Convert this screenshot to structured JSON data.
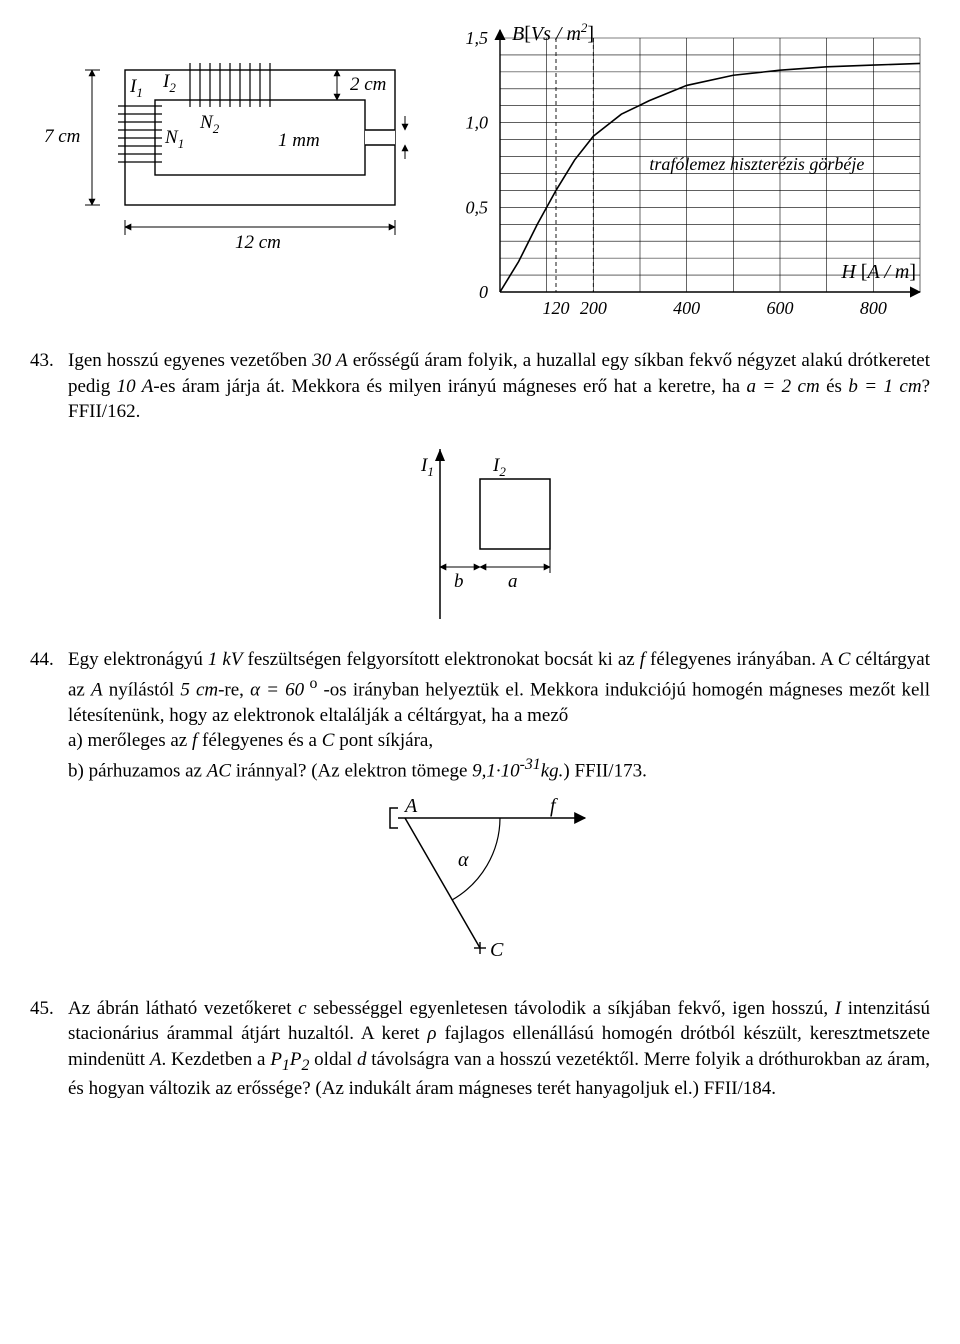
{
  "fig_top_left": {
    "labels": {
      "I1": "I",
      "I1_sub": "1",
      "I2": "I",
      "I2_sub": "2",
      "N1": "N",
      "N1_sub": "1",
      "N2": "N",
      "N2_sub": "2",
      "left_dim": "7 cm",
      "top_dim": "2 cm",
      "gap_dim": "1 mm",
      "bottom_dim": "12 cm"
    },
    "style": {
      "stroke": "#000000",
      "fill": "#ffffff",
      "stroke_width": 1.3
    }
  },
  "fig_top_right": {
    "type": "line",
    "title": "trafólemez hiszterézis görbéje",
    "y_axis_label_parts": [
      "B",
      "[",
      "Vs",
      "/",
      "m",
      "2",
      "]"
    ],
    "x_axis_label_parts": [
      "H",
      "[",
      "A",
      "/",
      "m",
      "]"
    ],
    "y_ticks": [
      "0",
      "0,5",
      "1,0",
      "1,5"
    ],
    "x_ticks": [
      "120",
      "200",
      "400",
      "600",
      "800"
    ],
    "xlim": [
      0,
      900
    ],
    "ylim": [
      0,
      1.5
    ],
    "x_grid_step": 100,
    "y_minor_step": 0.1,
    "dashed_x_marks": [
      120,
      200
    ],
    "curve": [
      [
        0,
        0.0
      ],
      [
        40,
        0.18
      ],
      [
        80,
        0.4
      ],
      [
        120,
        0.6
      ],
      [
        160,
        0.78
      ],
      [
        200,
        0.92
      ],
      [
        260,
        1.05
      ],
      [
        320,
        1.13
      ],
      [
        400,
        1.22
      ],
      [
        500,
        1.28
      ],
      [
        600,
        1.31
      ],
      [
        700,
        1.33
      ],
      [
        800,
        1.34
      ],
      [
        900,
        1.35
      ]
    ],
    "curve_width": 1.6,
    "grid_color": "#000000",
    "grid_width": 0.6,
    "background_color": "#ffffff",
    "font_size_tick": 18,
    "font_size_axis": 20,
    "curve_color": "#000000"
  },
  "problems": {
    "p43": {
      "num": "43.",
      "text_parts": [
        "Igen hosszú egyenes vezetőben ",
        {
          "i": "30 A"
        },
        " erősségű áram folyik, a huzallal egy síkban fekvő négyzet alakú drótkeretet pedig ",
        {
          "i": "10 A"
        },
        "-es áram járja át. Mekkora és milyen irányú mágneses erő hat a keretre, ha ",
        {
          "i": "a = 2 cm"
        },
        " és ",
        {
          "i": "b = 1 cm"
        },
        "? FFII/162."
      ]
    },
    "p44": {
      "num": "44.",
      "text_parts": [
        "Egy elektronágyú ",
        {
          "i": "1 kV"
        },
        " feszültségen felgyorsított elektronokat bocsát ki az ",
        {
          "i": "f"
        },
        " félegyenes irányában. A ",
        {
          "i": "C"
        },
        " céltárgyat az ",
        {
          "i": "A"
        },
        " nyílástól ",
        {
          "i": "5 cm"
        },
        "-re, ",
        {
          "i": "α = 60"
        },
        {
          "sup": " o"
        },
        " -os irányban helyeztük el. Mekkora indukciójú homogén mágneses mezőt kell létesítenünk, hogy az elektronok eltalálják a céltárgyat, ha a mező",
        {
          "br": true
        },
        "a) merőleges az ",
        {
          "i": "f "
        },
        " félegyenes és a ",
        {
          "i": "C"
        },
        " pont síkjára,",
        {
          "br": true
        },
        "b) párhuzamos az ",
        {
          "i": "AC"
        },
        " iránnyal? (Az elektron tömege ",
        {
          "i": "9,1·10"
        },
        {
          "isup": "-31"
        },
        {
          "i": "kg."
        },
        ") FFII/173."
      ]
    },
    "p45": {
      "num": "45.",
      "text_parts": [
        "Az ábrán látható vezetőkeret ",
        {
          "i": "c"
        },
        " sebességgel egyenletesen távolodik a síkjában fekvő, igen hosszú, ",
        {
          "i": "I"
        },
        " intenzitású stacionárius árammal átjárt huzaltól. A keret ",
        {
          "i": "ρ"
        },
        " fajlagos ellenállású homogén drótból készült, keresztmetszete mindenütt ",
        {
          "i": "A"
        },
        ". Kezdetben a ",
        {
          "i": "P"
        },
        {
          "isub": "1"
        },
        {
          "i": "P"
        },
        {
          "isub": "2"
        },
        " oldal ",
        {
          "i": "d"
        },
        " távolságra van a hosszú vezetéktől. Merre folyik a dróthurokban az áram, és hogyan változik az erőssége? (Az indukált áram mágneses terét hanyagoljuk el.) FFII/184."
      ]
    }
  },
  "fig_43": {
    "labels": {
      "I1": "I",
      "I1_sub": "1",
      "I2": "I",
      "I2_sub": "2",
      "b": "b",
      "a": "a"
    },
    "style": {
      "stroke": "#000000",
      "stroke_width": 1.4
    }
  },
  "fig_44": {
    "labels": {
      "A": "A",
      "f": "f",
      "alpha": "α",
      "C": "C"
    },
    "style": {
      "stroke": "#000000",
      "stroke_width": 1.4
    }
  }
}
